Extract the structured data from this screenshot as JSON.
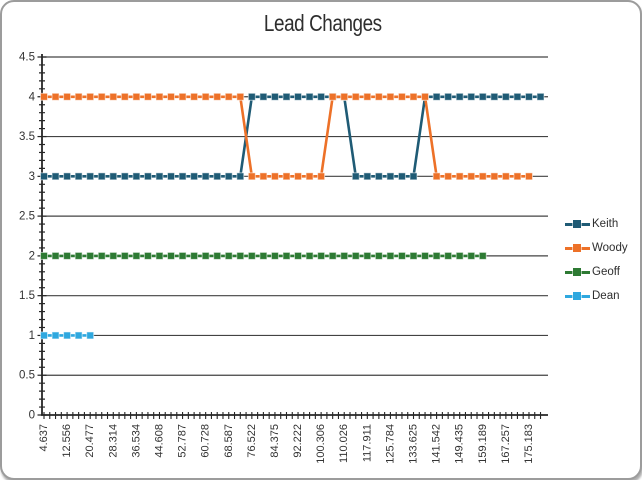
{
  "chart_data": {
    "type": "line",
    "title": "Lead Changes",
    "xlabel": "",
    "ylabel": "",
    "ylim": [
      0,
      4.5
    ],
    "y_tick_labels": [
      "0",
      "0.5",
      "1",
      "1.5",
      "2",
      "2.5",
      "3",
      "3.5",
      "4",
      "4.5"
    ],
    "y_tick_step": 0.5,
    "y_minor_tick_step": 0.1,
    "grid": "horizontal-on",
    "legend_position": "right",
    "x_labels": [
      "4.637",
      "12.556",
      "20.477",
      "28.314",
      "36.534",
      "44.608",
      "52.787",
      "60.728",
      "68.587",
      "76.522",
      "84.375",
      "92.222",
      "100.306",
      "110.026",
      "117.911",
      "125.784",
      "133.625",
      "141.542",
      "149.435",
      "159.189",
      "167.257",
      "175.183"
    ],
    "x_label_every_n_points": 2,
    "marker": "square-dash",
    "series": [
      {
        "name": "Keith",
        "color": "#1F5B75",
        "values": [
          3,
          3,
          3,
          3,
          3,
          3,
          3,
          3,
          3,
          3,
          3,
          3,
          3,
          3,
          3,
          3,
          3,
          3,
          4,
          4,
          4,
          4,
          4,
          4,
          4,
          4,
          4,
          3,
          3,
          3,
          3,
          3,
          3,
          4,
          4,
          4,
          4,
          4,
          4,
          4,
          4,
          4,
          4,
          4
        ]
      },
      {
        "name": "Woody",
        "color": "#ED7128",
        "values": [
          4,
          4,
          4,
          4,
          4,
          4,
          4,
          4,
          4,
          4,
          4,
          4,
          4,
          4,
          4,
          4,
          4,
          4,
          3,
          3,
          3,
          3,
          3,
          3,
          3,
          4,
          4,
          4,
          4,
          4,
          4,
          4,
          4,
          4,
          3,
          3,
          3,
          3,
          3,
          3,
          3,
          3,
          3
        ]
      },
      {
        "name": "Geoff",
        "color": "#2D7A33",
        "values": [
          2,
          2,
          2,
          2,
          2,
          2,
          2,
          2,
          2,
          2,
          2,
          2,
          2,
          2,
          2,
          2,
          2,
          2,
          2,
          2,
          2,
          2,
          2,
          2,
          2,
          2,
          2,
          2,
          2,
          2,
          2,
          2,
          2,
          2,
          2,
          2,
          2,
          2,
          2
        ]
      },
      {
        "name": "Dean",
        "color": "#2FA8DF",
        "values": [
          1,
          1,
          1,
          1,
          1
        ]
      }
    ]
  }
}
